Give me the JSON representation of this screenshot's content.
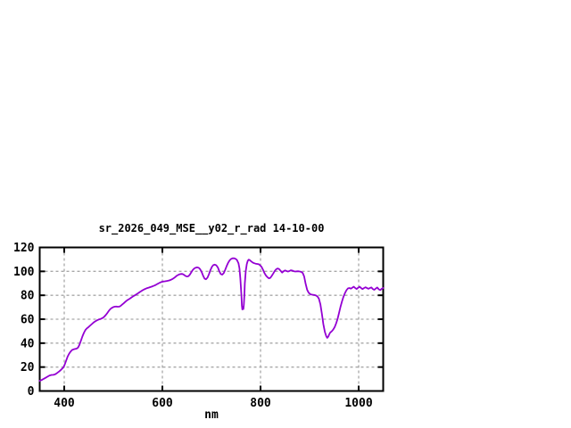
{
  "window": {
    "background": "#ffffff"
  },
  "chart_data": {
    "type": "line",
    "title": "sr_2026_049_MSE__y02_r_rad 14-10-00",
    "xlabel": "nm",
    "ylabel": "",
    "xlim": [
      350,
      1050
    ],
    "ylim": [
      0,
      120
    ],
    "xticks": [
      400,
      600,
      800,
      1000
    ],
    "yticks": [
      0,
      20,
      40,
      60,
      80,
      100,
      120
    ],
    "grid": true,
    "legend_position": "none",
    "colors": {
      "line": "#9400d3",
      "grid": "#a8a8a8",
      "axis": "#000000",
      "text": "#000000"
    },
    "series": [
      {
        "points": [
          [
            350,
            8.5
          ],
          [
            354,
            9.2
          ],
          [
            358,
            10.1
          ],
          [
            362,
            11
          ],
          [
            366,
            12
          ],
          [
            370,
            13
          ],
          [
            374,
            13.4
          ],
          [
            378,
            13.5
          ],
          [
            382,
            14.1
          ],
          [
            386,
            15.2
          ],
          [
            390,
            16.5
          ],
          [
            394,
            18
          ],
          [
            398,
            19.6
          ],
          [
            401,
            22
          ],
          [
            404,
            25.5
          ],
          [
            407,
            28.8
          ],
          [
            410,
            31.2
          ],
          [
            413,
            33
          ],
          [
            416,
            34.3
          ],
          [
            419,
            34.8
          ],
          [
            422,
            35.1
          ],
          [
            425,
            35.4
          ],
          [
            428,
            36.2
          ],
          [
            431,
            38.5
          ],
          [
            434,
            42
          ],
          [
            437,
            45.5
          ],
          [
            440,
            48.5
          ],
          [
            443,
            51
          ],
          [
            446,
            52.3
          ],
          [
            449,
            53.3
          ],
          [
            452,
            54.4
          ],
          [
            455,
            55.5
          ],
          [
            458,
            56.6
          ],
          [
            461,
            57.6
          ],
          [
            464,
            58.4
          ],
          [
            467,
            59.1
          ],
          [
            470,
            59.7
          ],
          [
            473,
            60.1
          ],
          [
            476,
            60.6
          ],
          [
            479,
            61.3
          ],
          [
            482,
            62.3
          ],
          [
            485,
            63.7
          ],
          [
            488,
            65.3
          ],
          [
            491,
            67
          ],
          [
            494,
            68.5
          ],
          [
            497,
            69.5
          ],
          [
            500,
            70.1
          ],
          [
            503,
            70.5
          ],
          [
            506,
            70.6
          ],
          [
            509,
            70.4
          ],
          [
            512,
            70.5
          ],
          [
            515,
            71.2
          ],
          [
            518,
            72.2
          ],
          [
            521,
            73.3
          ],
          [
            524,
            74.4
          ],
          [
            527,
            75.4
          ],
          [
            530,
            76.3
          ],
          [
            533,
            77.1
          ],
          [
            536,
            77.9
          ],
          [
            539,
            78.7
          ],
          [
            542,
            79.5
          ],
          [
            545,
            80.3
          ],
          [
            548,
            81.1
          ],
          [
            551,
            81.9
          ],
          [
            554,
            82.7
          ],
          [
            557,
            83.5
          ],
          [
            560,
            84.3
          ],
          [
            563,
            85
          ],
          [
            566,
            85.5
          ],
          [
            569,
            86
          ],
          [
            572,
            86.4
          ],
          [
            575,
            86.8
          ],
          [
            578,
            87.2
          ],
          [
            581,
            87.7
          ],
          [
            584,
            88.2
          ],
          [
            587,
            88.8
          ],
          [
            590,
            89.5
          ],
          [
            593,
            90.2
          ],
          [
            596,
            90.8
          ],
          [
            599,
            91.2
          ],
          [
            602,
            91.5
          ],
          [
            605,
            91.7
          ],
          [
            608,
            91.9
          ],
          [
            611,
            92.1
          ],
          [
            614,
            92.4
          ],
          [
            617,
            92.9
          ],
          [
            620,
            93.5
          ],
          [
            623,
            94.3
          ],
          [
            626,
            95.2
          ],
          [
            629,
            96.2
          ],
          [
            632,
            97
          ],
          [
            635,
            97.6
          ],
          [
            638,
            97.9
          ],
          [
            641,
            97.8
          ],
          [
            644,
            97.1
          ],
          [
            647,
            96.2
          ],
          [
            650,
            95.7
          ],
          [
            653,
            96
          ],
          [
            656,
            97.3
          ],
          [
            659,
            99.2
          ],
          [
            662,
            101.2
          ],
          [
            665,
            102.5
          ],
          [
            668,
            103.1
          ],
          [
            671,
            103.4
          ],
          [
            674,
            103
          ],
          [
            677,
            101.8
          ],
          [
            680,
            99.5
          ],
          [
            683,
            96.3
          ],
          [
            686,
            93.9
          ],
          [
            689,
            93.4
          ],
          [
            692,
            94.8
          ],
          [
            695,
            97.8
          ],
          [
            698,
            101.2
          ],
          [
            701,
            103.9
          ],
          [
            704,
            105.3
          ],
          [
            707,
            105.6
          ],
          [
            710,
            105
          ],
          [
            713,
            103.2
          ],
          [
            716,
            100.2
          ],
          [
            719,
            97.8
          ],
          [
            722,
            97.3
          ],
          [
            725,
            98.6
          ],
          [
            728,
            101.3
          ],
          [
            731,
            104.5
          ],
          [
            734,
            107.2
          ],
          [
            737,
            109.2
          ],
          [
            740,
            110.4
          ],
          [
            743,
            110.9
          ],
          [
            746,
            111
          ],
          [
            749,
            110.5
          ],
          [
            752,
            109.5
          ],
          [
            755,
            106.8
          ],
          [
            757,
            102.5
          ],
          [
            759,
            94
          ],
          [
            761,
            80
          ],
          [
            762,
            71.5
          ],
          [
            763,
            68.2
          ],
          [
            764,
            70
          ],
          [
            765,
            68.5
          ],
          [
            766,
            72
          ],
          [
            767,
            80
          ],
          [
            768,
            90
          ],
          [
            770,
            100.5
          ],
          [
            772,
            106
          ],
          [
            774,
            108.8
          ],
          [
            776,
            109.8
          ],
          [
            778,
            109.4
          ],
          [
            781,
            108.3
          ],
          [
            784,
            107.4
          ],
          [
            787,
            106.8
          ],
          [
            790,
            106.4
          ],
          [
            793,
            106.2
          ],
          [
            796,
            106
          ],
          [
            799,
            105.2
          ],
          [
            802,
            103.8
          ],
          [
            805,
            101.4
          ],
          [
            808,
            98.6
          ],
          [
            811,
            96.5
          ],
          [
            814,
            95.2
          ],
          [
            817,
            94.2
          ],
          [
            820,
            94.6
          ],
          [
            823,
            96.2
          ],
          [
            826,
            98.2
          ],
          [
            829,
            100.3
          ],
          [
            832,
            101.8
          ],
          [
            835,
            102.4
          ],
          [
            838,
            101.9
          ],
          [
            841,
            100.4
          ],
          [
            844,
            99
          ],
          [
            847,
            100.1
          ],
          [
            850,
            100.8
          ],
          [
            853,
            100.3
          ],
          [
            856,
            99.8
          ],
          [
            859,
            100.3
          ],
          [
            862,
            100.9
          ],
          [
            865,
            100.6
          ],
          [
            868,
            100.1
          ],
          [
            871,
            99.9
          ],
          [
            874,
            100
          ],
          [
            877,
            100.1
          ],
          [
            880,
            99.9
          ],
          [
            883,
            99.6
          ],
          [
            886,
            98.7
          ],
          [
            889,
            95.8
          ],
          [
            892,
            89.5
          ],
          [
            895,
            84.5
          ],
          [
            898,
            82.2
          ],
          [
            901,
            81
          ],
          [
            904,
            80.6
          ],
          [
            907,
            80.4
          ],
          [
            910,
            80.2
          ],
          [
            913,
            79.8
          ],
          [
            916,
            79
          ],
          [
            919,
            77.2
          ],
          [
            922,
            72.5
          ],
          [
            925,
            64.5
          ],
          [
            928,
            56
          ],
          [
            931,
            49.5
          ],
          [
            934,
            45.8
          ],
          [
            936,
            44.4
          ],
          [
            938,
            45.4
          ],
          [
            940,
            47.3
          ],
          [
            942,
            48.8
          ],
          [
            945,
            49.9
          ],
          [
            948,
            51.3
          ],
          [
            951,
            53.4
          ],
          [
            954,
            56.4
          ],
          [
            957,
            60.3
          ],
          [
            960,
            65.2
          ],
          [
            963,
            70.2
          ],
          [
            966,
            74.8
          ],
          [
            969,
            78.6
          ],
          [
            972,
            81.8
          ],
          [
            975,
            84.2
          ],
          [
            978,
            85.7
          ],
          [
            981,
            86.1
          ],
          [
            984,
            85.6
          ],
          [
            987,
            86.4
          ],
          [
            990,
            87.2
          ],
          [
            993,
            86.1
          ],
          [
            996,
            85.3
          ],
          [
            999,
            86.3
          ],
          [
            1002,
            87.1
          ],
          [
            1005,
            86
          ],
          [
            1008,
            85.2
          ],
          [
            1011,
            86.1
          ],
          [
            1014,
            86.7
          ],
          [
            1017,
            86
          ],
          [
            1020,
            85.4
          ],
          [
            1023,
            86.1
          ],
          [
            1026,
            86.5
          ],
          [
            1029,
            85.2
          ],
          [
            1032,
            84.6
          ],
          [
            1035,
            85.7
          ],
          [
            1038,
            86.5
          ],
          [
            1041,
            85
          ],
          [
            1044,
            84.4
          ],
          [
            1047,
            85.5
          ],
          [
            1050,
            86.1
          ]
        ]
      }
    ]
  }
}
